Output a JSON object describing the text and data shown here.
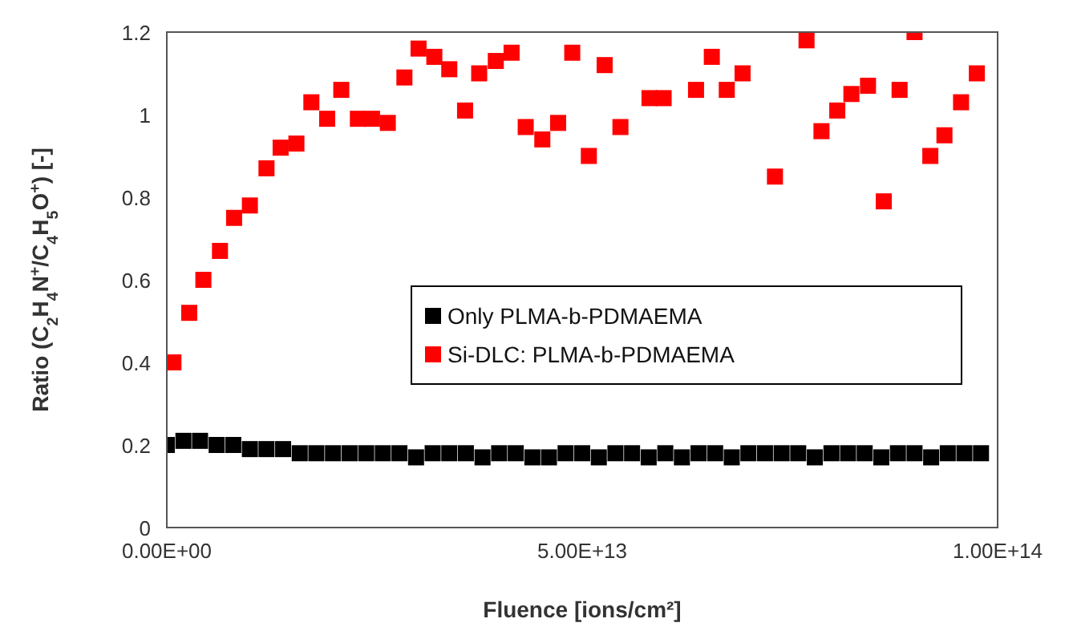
{
  "chart_data": {
    "type": "scatter",
    "xlabel": "Fluence [ions/cm²]",
    "ylabel": "Ratio (C$_{2}$H$_{4}$N$^{+}$/C$_{4}$H$_{5}$O$^{+}$) [-]",
    "xlim": [
      0,
      100000000000000.0
    ],
    "xticks": [
      {
        "value": 0,
        "label": "0.00E+00"
      },
      {
        "value": 50000000000000.0,
        "label": "5.00E+13"
      },
      {
        "value": 100000000000000.0,
        "label": "1.00E+14"
      }
    ],
    "ylim": [
      0,
      1.2
    ],
    "yticks": [
      0,
      0.2,
      0.4,
      0.6,
      0.8,
      1,
      1.2
    ],
    "grid": false,
    "legend": "center",
    "marker": "square",
    "series": [
      {
        "name": "Only PLMA-b-PDMAEMA",
        "color": "#000000",
        "x": [
          0,
          2000000000000.0,
          4000000000000.0,
          6000000000000.0,
          8000000000000.0,
          10000000000000.0,
          12000000000000.0,
          14000000000000.0,
          16000000000000.0,
          18000000000000.0,
          20000000000000.0,
          22000000000000.0,
          24000000000000.0,
          26000000000000.0,
          28000000000000.0,
          30000000000000.0,
          32000000000000.0,
          34000000000000.0,
          36000000000000.0,
          38000000000000.0,
          40000000000000.0,
          42000000000000.0,
          44000000000000.0,
          46000000000000.0,
          48000000000000.0,
          50000000000000.0,
          52000000000000.0,
          54000000000000.0,
          56000000000000.0,
          58000000000000.0,
          60000000000000.0,
          62000000000000.0,
          64000000000000.0,
          66000000000000.0,
          68000000000000.0,
          70000000000000.0,
          72000000000000.0,
          74000000000000.0,
          76000000000000.0,
          78000000000000.0,
          80000000000000.0,
          82000000000000.0,
          84000000000000.0,
          86000000000000.0,
          88000000000000.0,
          90000000000000.0,
          92000000000000.0,
          94000000000000.0,
          96000000000000.0,
          98000000000000.0
        ],
        "values": [
          0.2,
          0.21,
          0.21,
          0.2,
          0.2,
          0.19,
          0.19,
          0.19,
          0.18,
          0.18,
          0.18,
          0.18,
          0.18,
          0.18,
          0.18,
          0.17,
          0.18,
          0.18,
          0.18,
          0.17,
          0.18,
          0.18,
          0.17,
          0.17,
          0.18,
          0.18,
          0.17,
          0.18,
          0.18,
          0.17,
          0.18,
          0.17,
          0.18,
          0.18,
          0.17,
          0.18,
          0.18,
          0.18,
          0.18,
          0.17,
          0.18,
          0.18,
          0.18,
          0.17,
          0.18,
          0.18,
          0.17,
          0.18,
          0.18,
          0.18
        ]
      },
      {
        "name": "Si-DLC: PLMA-b-PDMAEMA",
        "color": "#ff0000",
        "x": [
          800000000000.0,
          2700000000000.0,
          4400000000000.0,
          6400000000000.0,
          8100000000000.0,
          10000000000000.0,
          12000000000000.0,
          13700000000000.0,
          15600000000000.0,
          17400000000000.0,
          19300000000000.0,
          21000000000000.0,
          23000000000000.0,
          24700000000000.0,
          26600000000000.0,
          28600000000000.0,
          30300000000000.0,
          32200000000000.0,
          34000000000000.0,
          35900000000000.0,
          37600000000000.0,
          39600000000000.0,
          41500000000000.0,
          43200000000000.0,
          45200000000000.0,
          47100000000000.0,
          48800000000000.0,
          50800000000000.0,
          52700000000000.0,
          54600000000000.0,
          58100000000000.0,
          59800000000000.0,
          63700000000000.0,
          65600000000000.0,
          67400000000000.0,
          69300000000000.0,
          73200000000000.0,
          77000000000000.0,
          78800000000000.0,
          80700000000000.0,
          82400000000000.0,
          84400000000000.0,
          86300000000000.0,
          88200000000000.0,
          90000000000000.0,
          91900000000000.0,
          93600000000000.0,
          95600000000000.0,
          97500000000000.0
        ],
        "values": [
          0.4,
          0.52,
          0.6,
          0.67,
          0.75,
          0.78,
          0.87,
          0.92,
          0.93,
          1.03,
          0.99,
          1.06,
          0.99,
          0.99,
          0.98,
          1.09,
          1.16,
          1.14,
          1.11,
          1.01,
          1.1,
          1.13,
          1.15,
          0.97,
          0.94,
          0.98,
          1.15,
          0.9,
          1.12,
          0.97,
          1.04,
          1.04,
          1.06,
          1.14,
          1.06,
          1.1,
          0.85,
          1.18,
          0.96,
          1.01,
          1.05,
          1.07,
          0.79,
          1.06,
          1.2,
          0.9,
          0.95,
          1.03,
          1.1
        ]
      }
    ]
  }
}
